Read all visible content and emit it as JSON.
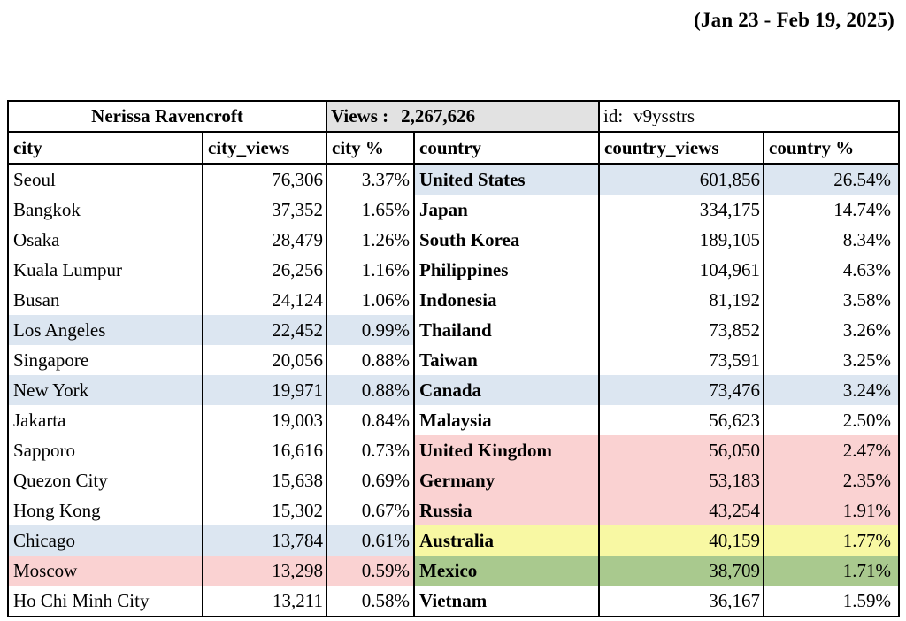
{
  "header": {
    "date_range": "(Jan 23 - Feb 19, 2025)"
  },
  "table": {
    "title": "Nerissa Ravencroft",
    "views_label": "Views :",
    "views_total": "2,267,626",
    "id_label": "id:",
    "id_value": "v9ysstrs",
    "columns": [
      "city",
      "city_views",
      "city %",
      "country",
      "country_views",
      "country %"
    ],
    "rows": [
      {
        "city": "Seoul",
        "city_views": "76,306",
        "city_pct": "3.37%",
        "city_bg": "",
        "country": "United States",
        "country_views": "601,856",
        "country_pct": "26.54%",
        "country_bg": "blue"
      },
      {
        "city": "Bangkok",
        "city_views": "37,352",
        "city_pct": "1.65%",
        "city_bg": "",
        "country": "Japan",
        "country_views": "334,175",
        "country_pct": "14.74%",
        "country_bg": ""
      },
      {
        "city": "Osaka",
        "city_views": "28,479",
        "city_pct": "1.26%",
        "city_bg": "",
        "country": "South Korea",
        "country_views": "189,105",
        "country_pct": "8.34%",
        "country_bg": ""
      },
      {
        "city": "Kuala Lumpur",
        "city_views": "26,256",
        "city_pct": "1.16%",
        "city_bg": "",
        "country": "Philippines",
        "country_views": "104,961",
        "country_pct": "4.63%",
        "country_bg": ""
      },
      {
        "city": "Busan",
        "city_views": "24,124",
        "city_pct": "1.06%",
        "city_bg": "",
        "country": "Indonesia",
        "country_views": "81,192",
        "country_pct": "3.58%",
        "country_bg": ""
      },
      {
        "city": "Los Angeles",
        "city_views": "22,452",
        "city_pct": "0.99%",
        "city_bg": "blue",
        "country": "Thailand",
        "country_views": "73,852",
        "country_pct": "3.26%",
        "country_bg": ""
      },
      {
        "city": "Singapore",
        "city_views": "20,056",
        "city_pct": "0.88%",
        "city_bg": "",
        "country": "Taiwan",
        "country_views": "73,591",
        "country_pct": "3.25%",
        "country_bg": ""
      },
      {
        "city": "New York",
        "city_views": "19,971",
        "city_pct": "0.88%",
        "city_bg": "blue",
        "country": "Canada",
        "country_views": "73,476",
        "country_pct": "3.24%",
        "country_bg": "blue"
      },
      {
        "city": "Jakarta",
        "city_views": "19,003",
        "city_pct": "0.84%",
        "city_bg": "",
        "country": "Malaysia",
        "country_views": "56,623",
        "country_pct": "2.50%",
        "country_bg": ""
      },
      {
        "city": "Sapporo",
        "city_views": "16,616",
        "city_pct": "0.73%",
        "city_bg": "",
        "country": "United Kingdom",
        "country_views": "56,050",
        "country_pct": "2.47%",
        "country_bg": "pink"
      },
      {
        "city": "Quezon City",
        "city_views": "15,638",
        "city_pct": "0.69%",
        "city_bg": "",
        "country": "Germany",
        "country_views": "53,183",
        "country_pct": "2.35%",
        "country_bg": "pink"
      },
      {
        "city": "Hong Kong",
        "city_views": "15,302",
        "city_pct": "0.67%",
        "city_bg": "",
        "country": "Russia",
        "country_views": "43,254",
        "country_pct": "1.91%",
        "country_bg": "pink"
      },
      {
        "city": "Chicago",
        "city_views": "13,784",
        "city_pct": "0.61%",
        "city_bg": "blue",
        "country": "Australia",
        "country_views": "40,159",
        "country_pct": "1.77%",
        "country_bg": "yellow"
      },
      {
        "city": "Moscow",
        "city_views": "13,298",
        "city_pct": "0.59%",
        "city_bg": "pink",
        "country": "Mexico",
        "country_views": "38,709",
        "country_pct": "1.71%",
        "country_bg": "green"
      },
      {
        "city": "Ho Chi Minh City",
        "city_views": "13,211",
        "city_pct": "0.58%",
        "city_bg": "",
        "country": "Vietnam",
        "country_views": "36,167",
        "country_pct": "1.59%",
        "country_bg": ""
      }
    ]
  },
  "colors": {
    "highlight_blue": "#dce6f1",
    "highlight_pink": "#fad2d2",
    "highlight_yellow": "#f8f8a3",
    "highlight_green": "#a9c98e",
    "views_cell_bg": "#e2e2e2",
    "border": "#000000"
  }
}
